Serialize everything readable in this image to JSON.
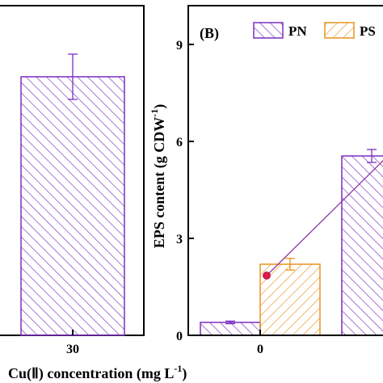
{
  "chart_data": [
    {
      "panel": "A",
      "type": "bar",
      "categories": [
        "30"
      ],
      "xlabel": "Cu(Ⅱ) concentration (mg L",
      "xlabel_sup": "-1",
      "xlabel_tail": ")",
      "series": [
        {
          "values": [
            8.0
          ],
          "errors": [
            0.7
          ]
        }
      ],
      "colors": {
        "bar": "#7b2fbf"
      }
    },
    {
      "panel": "B",
      "panel_label": "(B)",
      "type": "bar",
      "categories": [
        "0",
        ""
      ],
      "ylabel_main": "EPS content  (g CDW",
      "ylabel_sup": "-1",
      "ylabel_tail": ")",
      "ylim": [
        0,
        10.2
      ],
      "yticks": [
        "0",
        "3",
        "6",
        "9"
      ],
      "legend": {
        "position": "top",
        "entries": [
          "PN",
          "PS"
        ]
      },
      "series": [
        {
          "name": "PN",
          "values": [
            0.4,
            5.55
          ],
          "errors": [
            0.04,
            0.2
          ],
          "color": "#7b2fbf"
        },
        {
          "name": "PS",
          "values": [
            2.2,
            0
          ],
          "errors": [
            0.18,
            0
          ],
          "color": "#e8931e"
        }
      ],
      "line_series": {
        "values": [
          1.85,
          5.45
        ],
        "color": "#8e3aa8",
        "marker_color": "#e0184a"
      }
    }
  ]
}
